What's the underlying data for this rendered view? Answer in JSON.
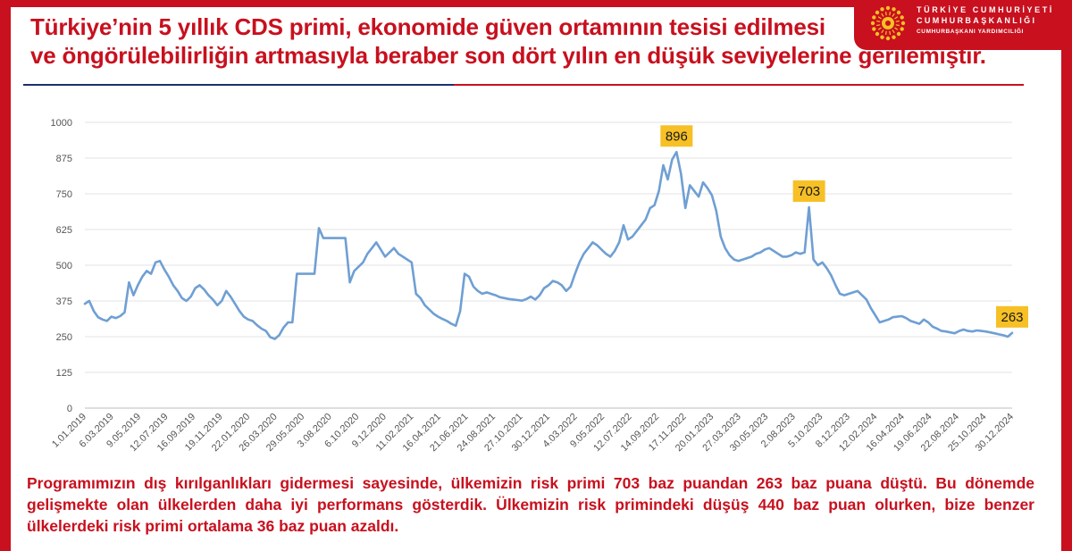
{
  "header": {
    "title_line1": "Türkiye’nin 5 yıllık CDS primi, ekonomide güven ortamının tesisi edilmesi",
    "title_line2": "ve öngörülebilirliğin artmasıyla beraber son dört yılın en düşük seviyelerine gerilemiştir."
  },
  "brand": {
    "line1": "TÜRKİYE CUMHURİYETİ",
    "line2": "CUMHURBAŞKANLIĞI",
    "line3": "CUMHURBAŞKANI YARDIMCILIĞI",
    "emblem_icon": "presidential-sun-star-emblem",
    "color": "#c8101e"
  },
  "colors": {
    "accent_red": "#c8101e",
    "divider_blue": "#1f2f6b",
    "series_line": "#6f9fd3",
    "callout_fill": "#f6c026"
  },
  "chart_data": {
    "type": "line",
    "title": "",
    "xlabel": "",
    "ylabel": "",
    "ylim": [
      0,
      1000
    ],
    "yticks": [
      0,
      125,
      250,
      375,
      500,
      625,
      750,
      875,
      1000
    ],
    "grid": true,
    "legend": "none",
    "xtick_labels": [
      "1.01.2019",
      "6.03.2019",
      "9.05.2019",
      "12.07.2019",
      "16.09.2019",
      "19.11.2019",
      "22.01.2020",
      "26.03.2020",
      "29.05.2020",
      "3.08.2020",
      "6.10.2020",
      "9.12.2020",
      "11.02.2021",
      "16.04.2021",
      "21.06.2021",
      "24.08.2021",
      "27.10.2021",
      "30.12.2021",
      "4.03.2022",
      "9.05.2022",
      "12.07.2022",
      "14.09.2022",
      "17.11.2022",
      "20.01.2023",
      "27.03.2023",
      "30.05.2023",
      "2.08.2023",
      "5.10.2023",
      "8.12.2023",
      "12.02.2024",
      "16.04.2024",
      "19.06.2024",
      "22.08.2024",
      "25.10.2024",
      "30.12.2024"
    ],
    "series": [
      {
        "values": [
          365,
          375,
          340,
          318,
          310,
          305,
          320,
          315,
          322,
          335,
          440,
          395,
          430,
          460,
          480,
          470,
          510,
          515,
          485,
          460,
          430,
          410,
          385,
          375,
          390,
          420,
          430,
          415,
          395,
          380,
          360,
          375,
          410,
          390,
          365,
          340,
          320,
          310,
          305,
          290,
          278,
          270,
          248,
          242,
          255,
          282,
          300,
          300,
          470,
          470,
          470,
          470,
          470,
          630,
          595,
          595,
          595,
          595,
          595,
          595,
          440,
          480,
          495,
          510,
          540,
          560,
          580,
          555,
          530,
          545,
          560,
          540,
          530,
          520,
          510,
          400,
          385,
          360,
          345,
          330,
          320,
          312,
          305,
          295,
          288,
          340,
          470,
          460,
          425,
          410,
          400,
          405,
          400,
          395,
          388,
          385,
          382,
          380,
          378,
          376,
          382,
          390,
          380,
          395,
          420,
          430,
          445,
          440,
          430,
          410,
          425,
          470,
          510,
          540,
          560,
          580,
          570,
          555,
          540,
          530,
          550,
          580,
          640,
          590,
          600,
          620,
          640,
          660,
          700,
          710,
          760,
          850,
          800,
          870,
          896,
          820,
          700,
          780,
          760,
          740,
          790,
          770,
          745,
          690,
          600,
          560,
          535,
          520,
          515,
          520,
          525,
          530,
          540,
          545,
          555,
          560,
          550,
          540,
          530,
          530,
          535,
          545,
          540,
          545,
          703,
          520,
          500,
          510,
          490,
          465,
          430,
          400,
          395,
          400,
          405,
          410,
          395,
          380,
          350,
          325,
          300,
          305,
          310,
          318,
          320,
          322,
          315,
          305,
          300,
          295,
          310,
          300,
          285,
          278,
          270,
          268,
          265,
          262,
          270,
          275,
          270,
          268,
          272,
          270,
          268,
          265,
          262,
          258,
          255,
          250,
          263
        ]
      }
    ],
    "annotations": [
      {
        "label": "896",
        "value": 896
      },
      {
        "label": "703",
        "value": 703
      },
      {
        "label": "263",
        "value": 263
      }
    ]
  },
  "footer": {
    "note": "Programımızın dış kırılganlıkları gidermesi sayesinde, ülkemizin risk primi 703 baz puandan 263 baz puana düştü. Bu dönemde gelişmekte olan ülkelerden daha iyi performans gösterdik. Ülkemizin risk primindeki düşüş 440 baz puan olurken, bize benzer ülkelerdeki risk primi ortalama 36 baz puan azaldı."
  }
}
